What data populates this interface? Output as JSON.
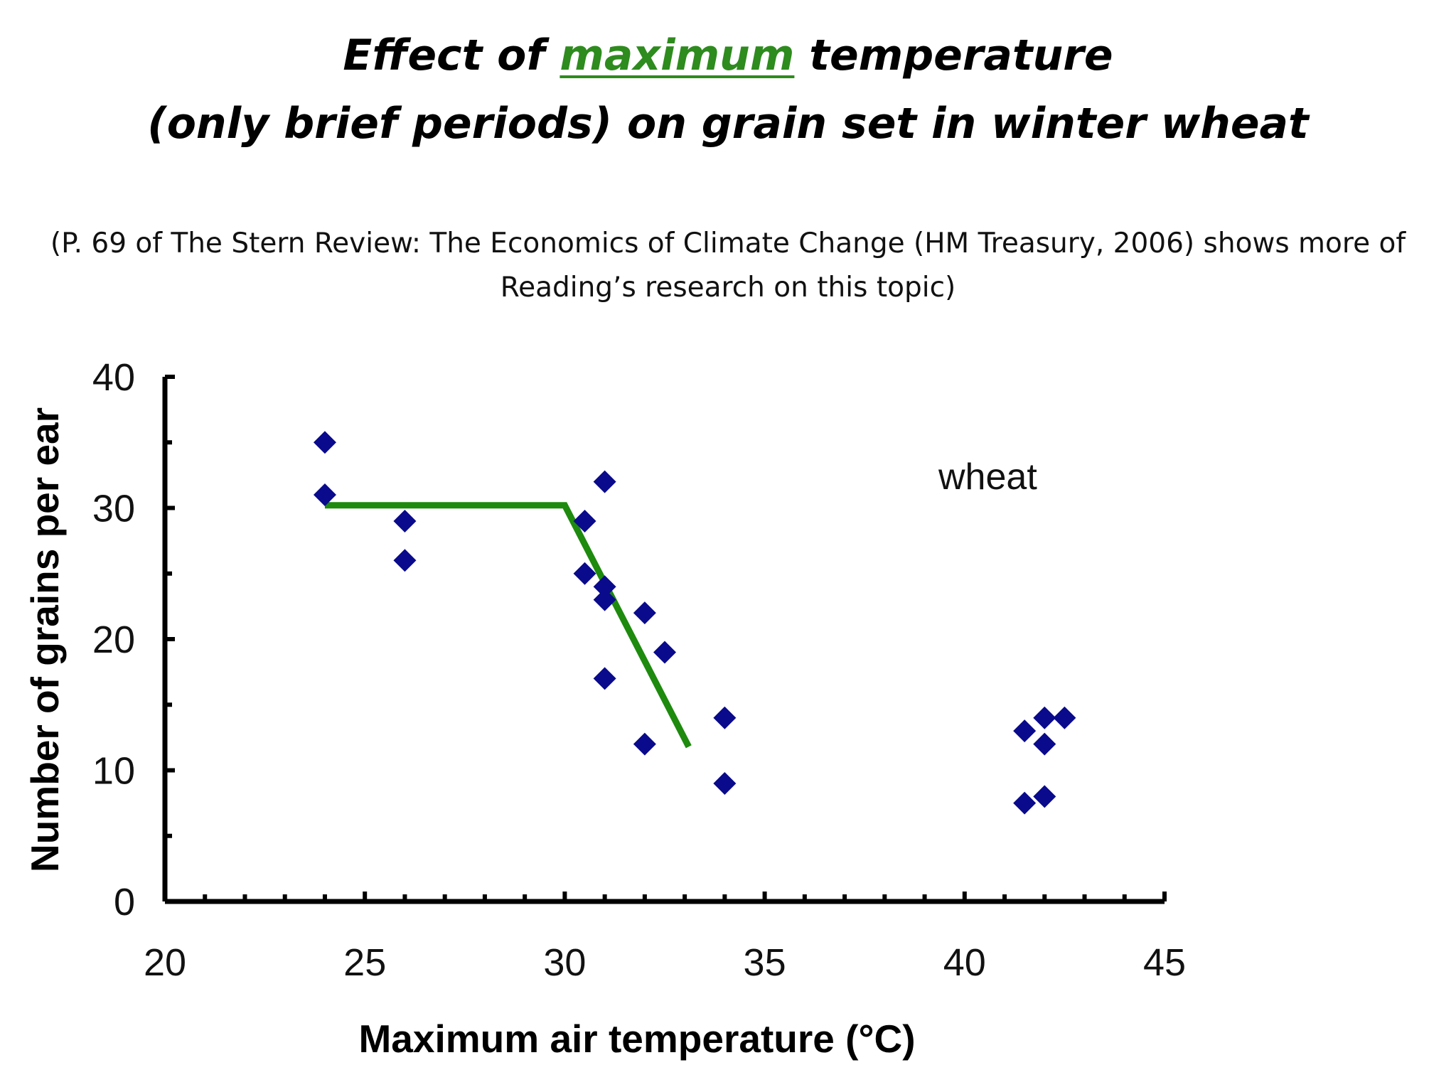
{
  "title": {
    "line1_pre": "Effect of ",
    "line1_highlight": "maximum",
    "line1_post": " temperature",
    "line2": "(only brief periods) on grain set in winter wheat",
    "highlight_color": "#2e8b1e"
  },
  "subtitle": {
    "line1": "(P. 69 of The Stern Review: The Economics of Climate Change (HM  Treasury, 2006) shows more of",
    "line2": "Reading’s research on this topic)"
  },
  "chart_data": {
    "type": "scatter",
    "xlabel": "Maximum air temperature (°C)",
    "ylabel": "Number of grains per ear",
    "xlim": [
      20,
      45
    ],
    "ylim": [
      0,
      40
    ],
    "x_ticks": [
      20,
      25,
      30,
      35,
      40,
      45
    ],
    "y_ticks": [
      0,
      10,
      20,
      30,
      40
    ],
    "grid": false,
    "annotation": "wheat",
    "marker_color": "#0a0a8c",
    "line_color": "#1e8a0e",
    "points": [
      {
        "x": 24,
        "y": 35
      },
      {
        "x": 24,
        "y": 31
      },
      {
        "x": 26,
        "y": 29
      },
      {
        "x": 26,
        "y": 26
      },
      {
        "x": 30.5,
        "y": 29
      },
      {
        "x": 31,
        "y": 32
      },
      {
        "x": 30.5,
        "y": 25
      },
      {
        "x": 31,
        "y": 24
      },
      {
        "x": 31,
        "y": 23
      },
      {
        "x": 32,
        "y": 22
      },
      {
        "x": 32.5,
        "y": 19
      },
      {
        "x": 31,
        "y": 17
      },
      {
        "x": 32,
        "y": 12
      },
      {
        "x": 34,
        "y": 14
      },
      {
        "x": 34,
        "y": 9
      },
      {
        "x": 41.5,
        "y": 13
      },
      {
        "x": 42,
        "y": 14
      },
      {
        "x": 42.5,
        "y": 14
      },
      {
        "x": 42,
        "y": 12
      },
      {
        "x": 41.5,
        "y": 7.5
      },
      {
        "x": 42,
        "y": 8
      }
    ],
    "fit_line": [
      {
        "x": 24,
        "y": 30.2
      },
      {
        "x": 30,
        "y": 30.2
      },
      {
        "x": 33.1,
        "y": 11.8
      }
    ]
  }
}
